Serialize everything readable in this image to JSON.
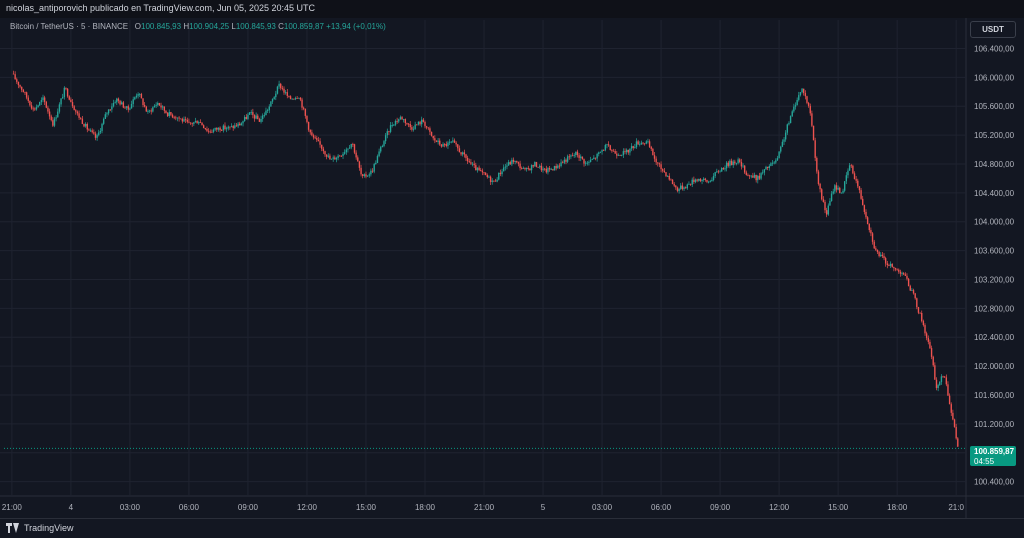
{
  "header": {
    "published": "nicolas_antiporovich publicado en TradingView.com, Jun 05, 2025 20:45 UTC"
  },
  "symbol": {
    "name": "Bitcoin / TetherUS · 5 · BINANCE",
    "open_label": "O",
    "open": "100.845,93",
    "high_label": "H",
    "high": "100.904,25",
    "low_label": "L",
    "low": "100.845,93",
    "close_label": "C",
    "close": "100.859,87",
    "change": "+13,94 (+0,01%)"
  },
  "currency_button": "USDT",
  "last_price": {
    "price": "100.859,87",
    "countdown": "04:55"
  },
  "brand": "TradingView",
  "colors": {
    "up": "#26a69a",
    "down": "#ef5350",
    "background": "#131722",
    "grid": "#1f2330",
    "axis_text": "#b2b5be",
    "price_tag": "#089981"
  },
  "chart_data": {
    "type": "candlestick",
    "interval": "5",
    "ylim": [
      100200,
      106600
    ],
    "y_ticks": [
      100400,
      100800,
      101200,
      101600,
      102000,
      102400,
      102800,
      103200,
      103600,
      104000,
      104400,
      104800,
      105200,
      105600,
      106000,
      106400
    ],
    "y_tick_labels": [
      "100.400,00",
      "100.800,00",
      "101.200,00",
      "101.600,00",
      "102.000,00",
      "102.400,00",
      "102.800,00",
      "103.200,00",
      "103.600,00",
      "104.000,00",
      "104.400,00",
      "104.800,00",
      "105.200,00",
      "105.600,00",
      "106.000,00",
      "106.400,00"
    ],
    "x_ticks": [
      {
        "label": "21:00",
        "hour": 0
      },
      {
        "label": "4",
        "hour": 3
      },
      {
        "label": "03:00",
        "hour": 6
      },
      {
        "label": "06:00",
        "hour": 9
      },
      {
        "label": "09:00",
        "hour": 12
      },
      {
        "label": "12:00",
        "hour": 15
      },
      {
        "label": "15:00",
        "hour": 18
      },
      {
        "label": "18:00",
        "hour": 21
      },
      {
        "label": "21:00",
        "hour": 24
      },
      {
        "label": "5",
        "hour": 27
      },
      {
        "label": "03:00",
        "hour": 30
      },
      {
        "label": "06:00",
        "hour": 33
      },
      {
        "label": "09:00",
        "hour": 36
      },
      {
        "label": "12:00",
        "hour": 39
      },
      {
        "label": "15:00",
        "hour": 42
      },
      {
        "label": "18:00",
        "hour": 45
      },
      {
        "label": "21:0",
        "hour": 48
      }
    ],
    "x_range_hours": [
      -0.4,
      48.5
    ],
    "close_path": [
      [
        0.0,
        106050
      ],
      [
        0.6,
        105800
      ],
      [
        1.1,
        105550
      ],
      [
        1.6,
        105700
      ],
      [
        2.1,
        105350
      ],
      [
        2.7,
        105850
      ],
      [
        3.3,
        105500
      ],
      [
        3.8,
        105300
      ],
      [
        4.3,
        105150
      ],
      [
        4.8,
        105500
      ],
      [
        5.3,
        105700
      ],
      [
        5.9,
        105550
      ],
      [
        6.4,
        105800
      ],
      [
        6.9,
        105500
      ],
      [
        7.4,
        105650
      ],
      [
        7.9,
        105500
      ],
      [
        8.4,
        105450
      ],
      [
        9.0,
        105350
      ],
      [
        9.5,
        105400
      ],
      [
        10.0,
        105250
      ],
      [
        10.6,
        105300
      ],
      [
        11.1,
        105300
      ],
      [
        11.6,
        105350
      ],
      [
        12.1,
        105500
      ],
      [
        12.6,
        105400
      ],
      [
        13.1,
        105600
      ],
      [
        13.6,
        105900
      ],
      [
        14.1,
        105700
      ],
      [
        14.6,
        105750
      ],
      [
        15.2,
        105200
      ],
      [
        15.7,
        105050
      ],
      [
        16.2,
        104850
      ],
      [
        16.8,
        104950
      ],
      [
        17.3,
        105100
      ],
      [
        17.8,
        104600
      ],
      [
        18.3,
        104700
      ],
      [
        18.8,
        105050
      ],
      [
        19.3,
        105350
      ],
      [
        19.8,
        105450
      ],
      [
        20.3,
        105300
      ],
      [
        20.9,
        105400
      ],
      [
        21.4,
        105150
      ],
      [
        21.9,
        105050
      ],
      [
        22.4,
        105100
      ],
      [
        23.0,
        104900
      ],
      [
        23.5,
        104750
      ],
      [
        24.0,
        104650
      ],
      [
        24.5,
        104550
      ],
      [
        25.0,
        104750
      ],
      [
        25.5,
        104850
      ],
      [
        26.1,
        104700
      ],
      [
        26.6,
        104800
      ],
      [
        27.1,
        104700
      ],
      [
        27.6,
        104750
      ],
      [
        28.1,
        104850
      ],
      [
        28.7,
        104950
      ],
      [
        29.2,
        104800
      ],
      [
        29.7,
        104900
      ],
      [
        30.2,
        105050
      ],
      [
        30.7,
        104950
      ],
      [
        31.2,
        104950
      ],
      [
        31.8,
        105100
      ],
      [
        32.3,
        105100
      ],
      [
        32.8,
        104800
      ],
      [
        33.3,
        104650
      ],
      [
        33.8,
        104450
      ],
      [
        34.3,
        104500
      ],
      [
        34.8,
        104600
      ],
      [
        35.4,
        104550
      ],
      [
        35.9,
        104700
      ],
      [
        36.4,
        104800
      ],
      [
        36.9,
        104850
      ],
      [
        37.4,
        104650
      ],
      [
        37.9,
        104600
      ],
      [
        38.4,
        104750
      ],
      [
        38.9,
        104850
      ],
      [
        39.4,
        105300
      ],
      [
        39.9,
        105700
      ],
      [
        40.2,
        105850
      ],
      [
        40.6,
        105500
      ],
      [
        41.0,
        104500
      ],
      [
        41.4,
        104100
      ],
      [
        41.8,
        104500
      ],
      [
        42.2,
        104400
      ],
      [
        42.6,
        104800
      ],
      [
        43.0,
        104500
      ],
      [
        43.5,
        104000
      ],
      [
        43.9,
        103600
      ],
      [
        44.4,
        103450
      ],
      [
        44.8,
        103350
      ],
      [
        45.3,
        103300
      ],
      [
        45.8,
        103000
      ],
      [
        46.3,
        102600
      ],
      [
        46.7,
        102200
      ],
      [
        47.0,
        101700
      ],
      [
        47.4,
        101900
      ],
      [
        47.8,
        101300
      ],
      [
        48.1,
        100860
      ]
    ],
    "last_price": 100859.87
  }
}
